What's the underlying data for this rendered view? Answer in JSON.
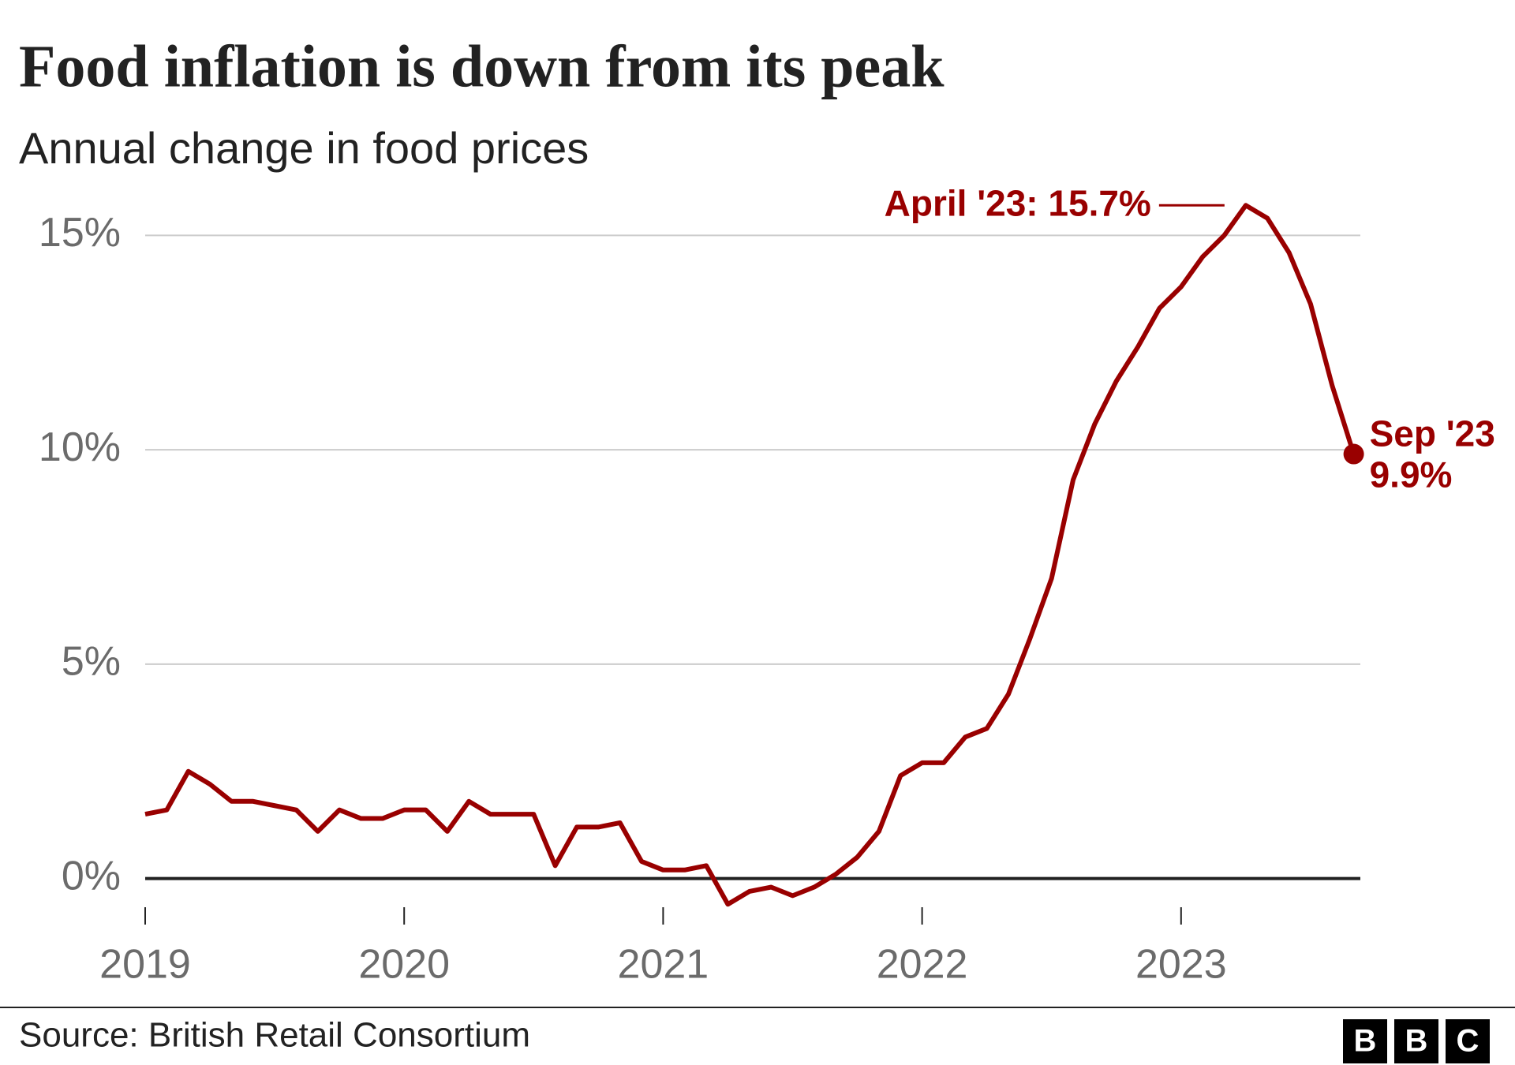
{
  "chart_data": {
    "type": "line",
    "title": "Food inflation is down from its peak",
    "subtitle": "Annual change in food prices",
    "categories": [
      "2019",
      null,
      null,
      null,
      null,
      null,
      null,
      null,
      null,
      null,
      null,
      null,
      "2020",
      null,
      null,
      null,
      null,
      null,
      null,
      null,
      null,
      null,
      null,
      null,
      "2021",
      null,
      null,
      null,
      null,
      null,
      null,
      null,
      null,
      null,
      null,
      null,
      "2022",
      null,
      null,
      null,
      null,
      null,
      null,
      null,
      null,
      null,
      null,
      null,
      "2023",
      null,
      null,
      null,
      null,
      null,
      null,
      null,
      null
    ],
    "series": [
      {
        "name": "Food inflation",
        "color": "#990000",
        "values": [
          1.5,
          1.6,
          2.5,
          2.2,
          1.8,
          1.8,
          1.7,
          1.6,
          1.1,
          1.6,
          1.4,
          1.4,
          1.6,
          1.6,
          1.1,
          1.8,
          1.5,
          1.5,
          1.5,
          0.3,
          1.2,
          1.2,
          1.3,
          0.4,
          0.2,
          0.2,
          0.3,
          -0.6,
          -0.3,
          -0.2,
          -0.4,
          -0.2,
          0.1,
          0.5,
          1.1,
          2.4,
          2.7,
          2.7,
          3.3,
          3.5,
          4.3,
          5.6,
          7.0,
          9.3,
          10.6,
          11.6,
          12.4,
          13.3,
          13.8,
          14.5,
          15.0,
          15.7,
          15.4,
          14.6,
          13.4,
          11.5,
          9.9
        ]
      }
    ],
    "ylim": [
      -1,
      16
    ],
    "yticks": [
      {
        "value": 0,
        "label": "0%"
      },
      {
        "value": 5,
        "label": "5%"
      },
      {
        "value": 10,
        "label": "10%"
      },
      {
        "value": 15,
        "label": "15%"
      }
    ],
    "grid": true,
    "peak_label": "April '23: 15.7%",
    "last_label": [
      "Sep '23",
      "9.9%"
    ],
    "source": "Source: British Retail Consortium",
    "logo": [
      "B",
      "B",
      "C"
    ]
  }
}
